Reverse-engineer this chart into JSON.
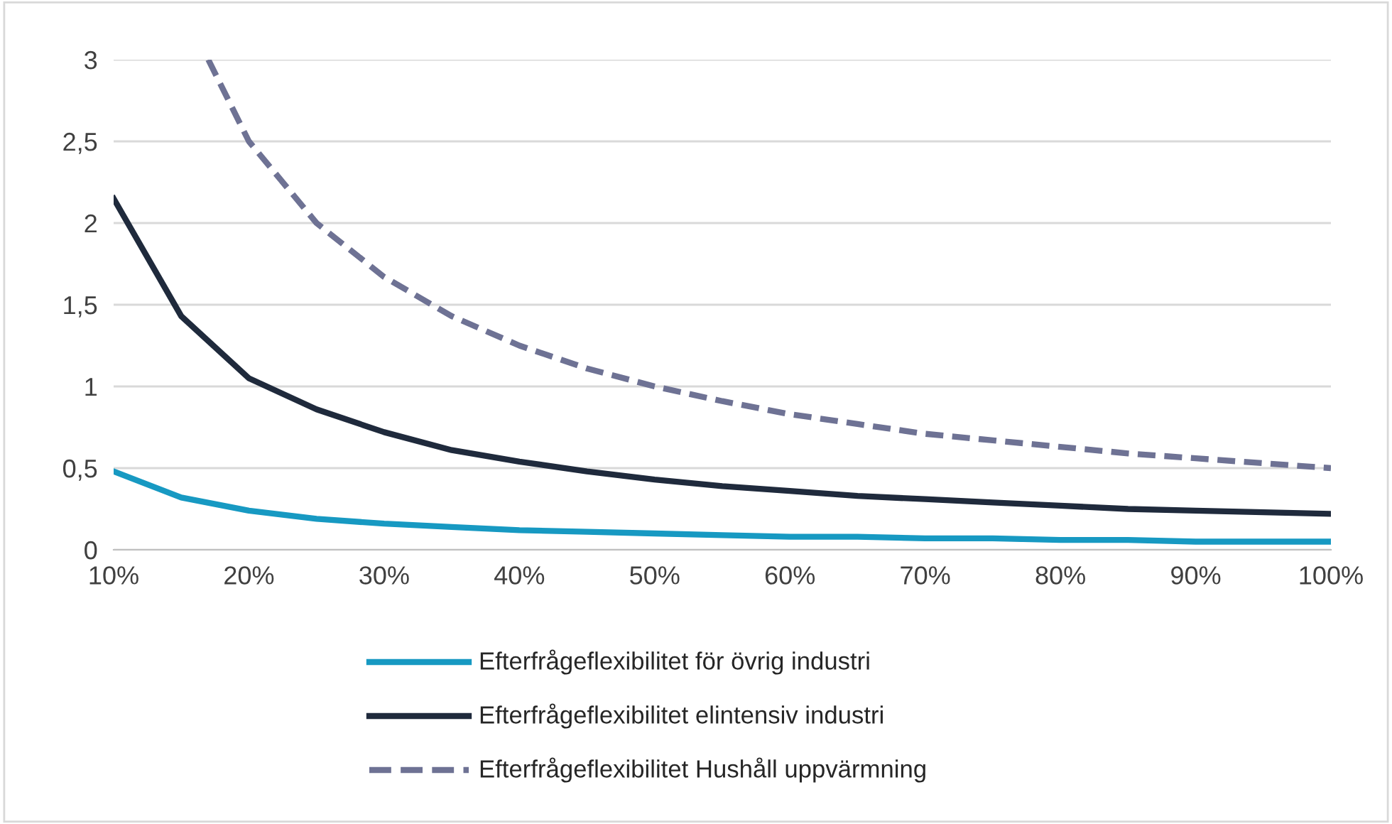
{
  "chart_data": {
    "type": "line",
    "xlim": [
      10,
      100
    ],
    "ylim": [
      0,
      3
    ],
    "xticks": [
      {
        "value": 10,
        "label": "10%"
      },
      {
        "value": 20,
        "label": "20%"
      },
      {
        "value": 30,
        "label": "30%"
      },
      {
        "value": 40,
        "label": "40%"
      },
      {
        "value": 50,
        "label": "50%"
      },
      {
        "value": 60,
        "label": "60%"
      },
      {
        "value": 70,
        "label": "70%"
      },
      {
        "value": 80,
        "label": "80%"
      },
      {
        "value": 90,
        "label": "90%"
      },
      {
        "value": 100,
        "label": "100%"
      }
    ],
    "yticks": [
      0,
      {
        "value": 0.5,
        "label": "0,5"
      },
      1,
      {
        "value": 1.5,
        "label": "1,5"
      },
      2,
      {
        "value": 2.5,
        "label": "2,5"
      },
      3
    ],
    "grid": "y",
    "legend": "bottom",
    "marker": "none",
    "series": [
      {
        "name": "Efterfrågeflexibilitet för övrig industri",
        "color": "#1799c2",
        "line_style": "solid",
        "x": [
          10,
          15,
          20,
          25,
          30,
          35,
          40,
          45,
          50,
          55,
          60,
          65,
          70,
          75,
          80,
          85,
          90,
          95,
          100
        ],
        "values": [
          0.48,
          0.32,
          0.24,
          0.19,
          0.16,
          0.14,
          0.12,
          0.11,
          0.1,
          0.09,
          0.08,
          0.08,
          0.07,
          0.07,
          0.06,
          0.06,
          0.05,
          0.05,
          0.05
        ]
      },
      {
        "name": "Efterfrågeflexibilitet elintensiv industri",
        "color": "#1f2a3c",
        "line_style": "solid",
        "x": [
          10,
          15,
          20,
          25,
          30,
          35,
          40,
          45,
          50,
          55,
          60,
          65,
          70,
          75,
          80,
          85,
          90,
          95,
          100
        ],
        "values": [
          2.15,
          1.43,
          1.05,
          0.86,
          0.72,
          0.61,
          0.54,
          0.48,
          0.43,
          0.39,
          0.36,
          0.33,
          0.31,
          0.29,
          0.27,
          0.25,
          0.24,
          0.23,
          0.22
        ]
      },
      {
        "name": "Efterfrågeflexibilitet Hushåll uppvärmning",
        "color": "#6e7294",
        "line_style": "dashed",
        "x": [
          17,
          20,
          25,
          30,
          35,
          40,
          45,
          50,
          55,
          60,
          65,
          70,
          75,
          80,
          85,
          90,
          95,
          100
        ],
        "values": [
          3,
          2.5,
          2.0,
          1.67,
          1.43,
          1.25,
          1.11,
          1.0,
          0.91,
          0.83,
          0.77,
          0.71,
          0.67,
          0.63,
          0.59,
          0.56,
          0.53,
          0.5
        ]
      }
    ]
  }
}
